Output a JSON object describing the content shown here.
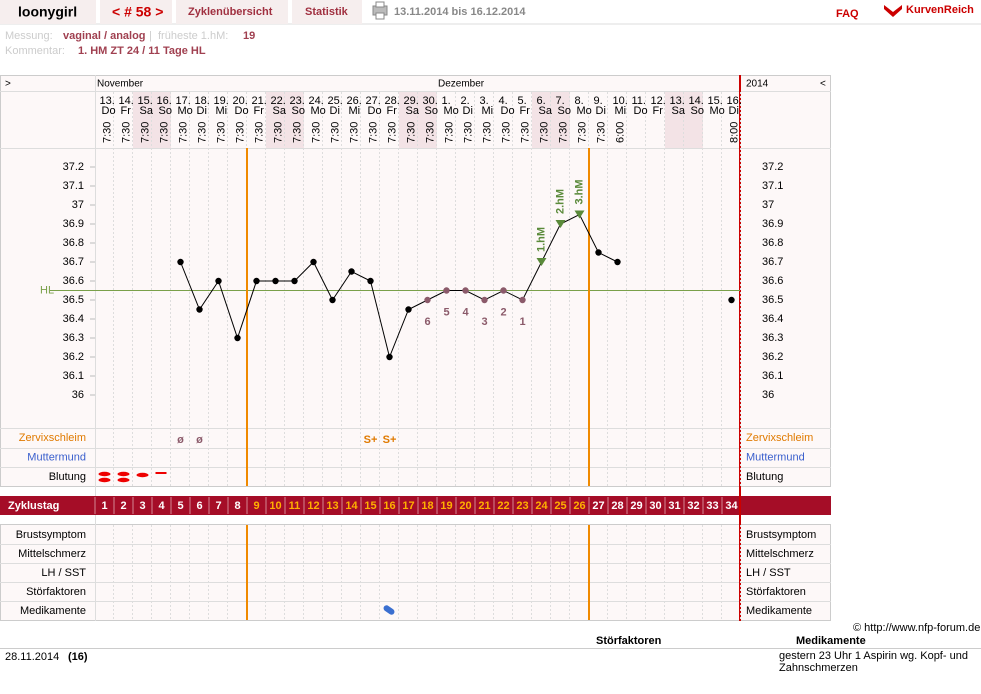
{
  "header": {
    "user": "loonygirl",
    "cycle": "< # 58 >",
    "tab1": "Zyklenübersicht",
    "tab2": "Statistik",
    "range": "13.11.2014 bis 16.12.2014",
    "faq": "FAQ",
    "logo": "KurvenReich"
  },
  "info": {
    "messung_label": "Messung:",
    "messung": "vaginal / analog",
    "sep": "|",
    "hm_label": "früheste 1.hM:",
    "hm": 19,
    "kommentar_label": "Kommentar:",
    "kommentar": "1. HM ZT 24 / 11 Tage HL"
  },
  "chart_data": {
    "type": "line",
    "nav_left": ">",
    "nav_right": "<",
    "months": [
      "November",
      "Dezember",
      "2014"
    ],
    "categories": [
      "13.",
      "14.",
      "15.",
      "16.",
      "17.",
      "18.",
      "19.",
      "20.",
      "21.",
      "22.",
      "23.",
      "24.",
      "25.",
      "26.",
      "27.",
      "28.",
      "29.",
      "30.",
      "1.",
      "2.",
      "3.",
      "4.",
      "5.",
      "6.",
      "7.",
      "8.",
      "9.",
      "10.",
      "11.",
      "12.",
      "13.",
      "14.",
      "15.",
      "16."
    ],
    "weekdays": [
      "Do",
      "Fr",
      "Sa",
      "So",
      "Mo",
      "Di",
      "Mi",
      "Do",
      "Fr",
      "Sa",
      "So",
      "Mo",
      "Di",
      "Mi",
      "Do",
      "Fr",
      "Sa",
      "So",
      "Mo",
      "Di",
      "Mi",
      "Do",
      "Fr",
      "Sa",
      "So",
      "Mo",
      "Di",
      "Mi",
      "Do",
      "Fr",
      "Sa",
      "So",
      "Mo",
      "Di"
    ],
    "times": [
      "7:30",
      "7:30",
      "7:30",
      "7:30",
      "7:30",
      "7:30",
      "7:30",
      "7:30",
      "7:30",
      "7:30",
      "7:30",
      "7:30",
      "7:30",
      "7:30",
      "7:30",
      "7:30",
      "7:30",
      "7:30",
      "7:30",
      "7:30",
      "7:30",
      "7:30",
      "7:30",
      "7:30",
      "7:30",
      "7:30",
      "7:30",
      "6:00",
      null,
      null,
      null,
      null,
      null,
      "8:00"
    ],
    "values": [
      null,
      null,
      null,
      null,
      36.7,
      36.45,
      36.6,
      36.3,
      36.6,
      36.6,
      36.6,
      36.7,
      36.5,
      36.65,
      36.6,
      36.2,
      36.45,
      36.5,
      36.55,
      36.55,
      36.5,
      36.55,
      36.5,
      36.7,
      36.9,
      36.95,
      36.75,
      36.7,
      null,
      null,
      null,
      null,
      null,
      36.5
    ],
    "color": "#000000",
    "low_labels": [
      null,
      null,
      null,
      null,
      null,
      null,
      null,
      null,
      null,
      null,
      null,
      null,
      null,
      null,
      null,
      null,
      null,
      6,
      5,
      4,
      3,
      2,
      1,
      null,
      null,
      null,
      null,
      null,
      null,
      null,
      null,
      null,
      null,
      null
    ],
    "low_color": "#8b5a6a",
    "hm_labels": [
      null,
      null,
      null,
      null,
      null,
      null,
      null,
      null,
      null,
      null,
      null,
      null,
      null,
      null,
      null,
      null,
      null,
      null,
      null,
      null,
      null,
      null,
      null,
      "1.hM",
      "2.hM",
      "3.hM",
      null,
      null,
      null,
      null,
      null,
      null,
      null,
      null
    ],
    "hm_color": "#5a8a3a",
    "ylim": [
      35.9,
      37.3
    ],
    "yticks": [
      36,
      36.1,
      36.2,
      36.3,
      36.4,
      36.5,
      36.6,
      36.7,
      36.8,
      36.9,
      37,
      37.1,
      37.2
    ],
    "hl": 36.55,
    "hl_label": "HL",
    "hl_color": "#7aa04a",
    "row_labels": [
      "Zervixschleim",
      "Muttermund",
      "Blutung"
    ],
    "row_colors": [
      "#e07a00",
      "#3a5fcd",
      "#000000"
    ],
    "zervix": [
      null,
      null,
      null,
      null,
      "ø",
      "ø",
      null,
      null,
      null,
      null,
      null,
      null,
      null,
      null,
      "S+",
      "S+",
      null,
      null,
      null,
      null,
      null,
      null,
      null,
      null,
      null,
      null,
      null,
      null,
      null,
      null,
      null,
      null,
      null,
      null
    ],
    "cycle_label": "Zyklustag",
    "cycle_days": [
      1,
      2,
      3,
      4,
      5,
      6,
      7,
      8,
      9,
      10,
      11,
      12,
      13,
      14,
      15,
      16,
      17,
      18,
      19,
      20,
      21,
      22,
      23,
      24,
      25,
      26,
      27,
      28,
      29,
      30,
      31,
      32,
      33,
      34
    ],
    "fertile_range": [
      9,
      26
    ],
    "bottom_labels": [
      "Brustsymptom",
      "Mittelschmerz",
      "LH / SST",
      "Störfaktoren",
      "Medikamente"
    ]
  },
  "footer": {
    "copyright": "© http://www.nfp-forum.de",
    "col1": "Störfaktoren",
    "col2": "Medikamente",
    "date": "28.11.2014",
    "day": "(16)",
    "medikamente": "gestern 23 Uhr 1 Aspirin wg. Kopf- und Zahnschmerzen"
  }
}
